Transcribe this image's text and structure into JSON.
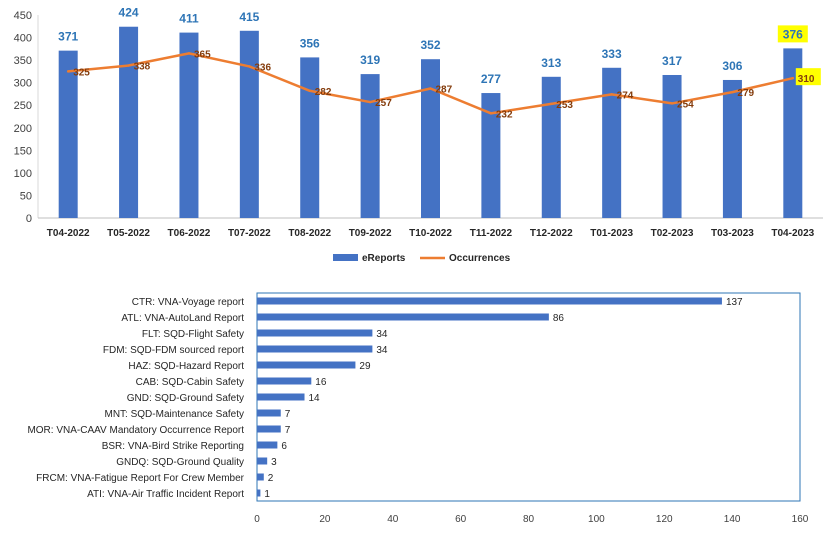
{
  "chart_data": [
    {
      "type": "bar",
      "categories": [
        "T04-2022",
        "T05-2022",
        "T06-2022",
        "T07-2022",
        "T08-2022",
        "T09-2022",
        "T10-2022",
        "T11-2022",
        "T12-2022",
        "T01-2023",
        "T02-2023",
        "T03-2023",
        "T04-2023"
      ],
      "series": [
        {
          "name": "eReports",
          "kind": "bar",
          "values": [
            371,
            424,
            411,
            415,
            356,
            319,
            352,
            277,
            313,
            333,
            317,
            306,
            376
          ]
        },
        {
          "name": "Occurrences",
          "kind": "line",
          "values": [
            325,
            338,
            365,
            336,
            282,
            257,
            287,
            232,
            253,
            274,
            254,
            279,
            310
          ]
        }
      ],
      "ylim": [
        0,
        450
      ],
      "yticks": [
        0,
        50,
        100,
        150,
        200,
        250,
        300,
        350,
        400,
        450
      ],
      "highlighted_labels": [
        "T04-2023"
      ],
      "legend_position": "bottom",
      "grid": false,
      "colors": {
        "bar": "#4472C4",
        "line": "#ED7D31",
        "bar_label": "#2E75B6",
        "line_label": "#843C0C",
        "highlight": "#FFFF00"
      }
    },
    {
      "type": "bar",
      "orientation": "horizontal",
      "categories": [
        "CTR: VNA-Voyage report",
        "ATL: VNA-AutoLand Report",
        "FLT: SQD-Flight Safety",
        "FDM: SQD-FDM sourced report",
        "HAZ: SQD-Hazard Report",
        "CAB: SQD-Cabin Safety",
        "GND: SQD-Ground Safety",
        "MNT: SQD-Maintenance Safety",
        "MOR: VNA-CAAV Mandatory Occurrence Report",
        "BSR: VNA-Bird Strike Reporting",
        "GNDQ: SQD-Ground Quality",
        "FRCM: VNA-Fatigue Report For Crew Member",
        "ATI: VNA-Air Traffic Incident Report"
      ],
      "values": [
        137,
        86,
        34,
        34,
        29,
        16,
        14,
        7,
        7,
        6,
        3,
        2,
        1
      ],
      "xlim": [
        0,
        160
      ],
      "xticks": [
        0,
        20,
        40,
        60,
        80,
        100,
        120,
        140,
        160
      ],
      "grid": false,
      "colors": {
        "bar": "#4472C4",
        "border": "#2E75B6"
      }
    }
  ]
}
